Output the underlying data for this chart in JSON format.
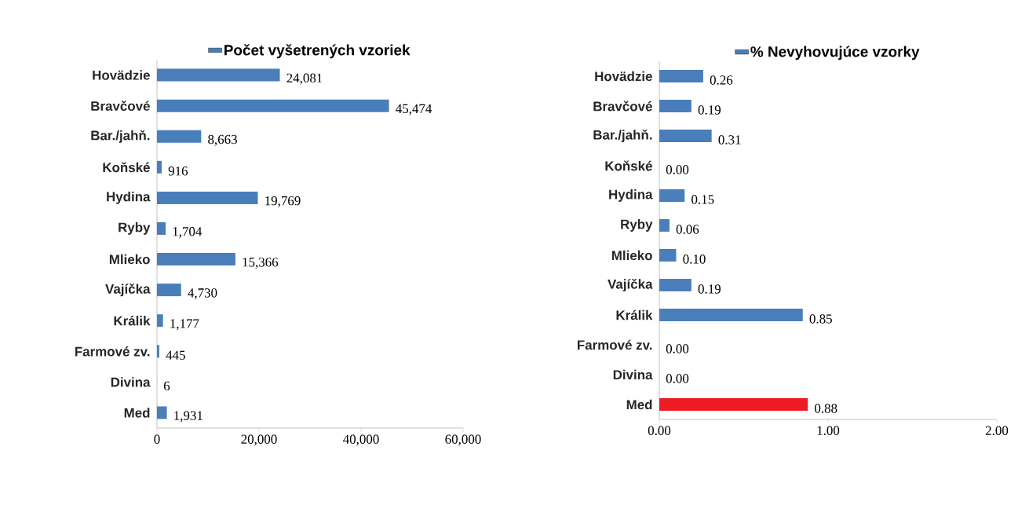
{
  "chart_data": [
    {
      "type": "bar",
      "orientation": "horizontal",
      "legend": "top",
      "categories": [
        "Hovädzie",
        "Bravčové",
        "Bar./jahň.",
        "Koňské",
        "Hydina",
        "Ryby",
        "Mlieko",
        "Vajíčka",
        "Králik",
        "Farmové zv.",
        "Divina",
        "Med"
      ],
      "series": [
        {
          "name": "Počet vyšetrených vzoriek",
          "color": "#4a7ebb",
          "values": [
            24081,
            45474,
            8663,
            916,
            19769,
            1704,
            15366,
            4730,
            1177,
            445,
            6,
            1931
          ],
          "value_labels": [
            "24,081",
            "45,474",
            "8,663",
            "916",
            "19,769",
            "1,704",
            "15,366",
            "4,730",
            "1,177",
            "445",
            "6",
            "1,931"
          ]
        }
      ],
      "xlim": [
        0,
        60000
      ],
      "xticks": [
        0,
        {
          "value": 20000,
          "label": "20,000"
        },
        {
          "value": 40000,
          "label": "40,000"
        },
        {
          "value": 60000,
          "label": "60,000"
        }
      ]
    },
    {
      "type": "bar",
      "orientation": "horizontal",
      "legend": "top",
      "categories": [
        "Hovädzie",
        "Bravčové",
        "Bar./jahň.",
        "Koňské",
        "Hydina",
        "Ryby",
        "Mlieko",
        "Vajíčka",
        "Králik",
        "Farmové zv.",
        "Divina",
        "Med"
      ],
      "series": [
        {
          "name": "% Nevyhovujúce vzorky",
          "color": "#4a7ebb",
          "values": [
            0.26,
            0.19,
            0.31,
            0,
            0.15,
            0.06,
            0.1,
            0.19,
            0.85,
            0,
            0,
            0.88
          ],
          "colors": [
            "#4a7ebb",
            "#4a7ebb",
            "#4a7ebb",
            "#4a7ebb",
            "#4a7ebb",
            "#4a7ebb",
            "#4a7ebb",
            "#4a7ebb",
            "#4a7ebb",
            "#4a7ebb",
            "#4a7ebb",
            "#ed1c24"
          ],
          "value_labels": [
            "0.26",
            "0.19",
            "0.31",
            "0.00",
            "0.15",
            "0.06",
            "0.10",
            "0.19",
            "0.85",
            "0.00",
            "0.00",
            "0.88"
          ]
        }
      ],
      "xlim": [
        0,
        2
      ],
      "xticks": [
        {
          "value": 0,
          "label": "0.00"
        },
        {
          "value": 1,
          "label": "1.00"
        },
        {
          "value": 2,
          "label": "2.00"
        }
      ]
    }
  ]
}
